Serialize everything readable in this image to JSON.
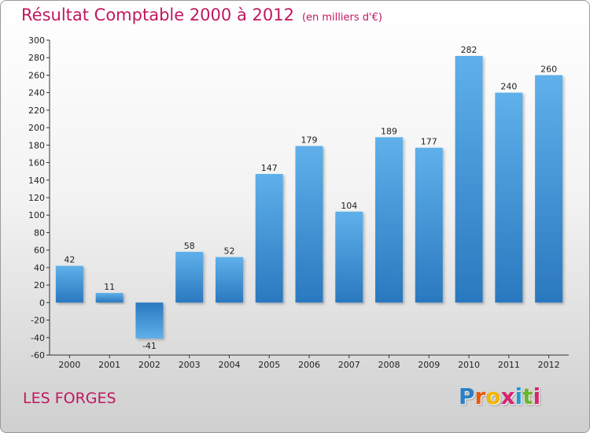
{
  "chart_data": {
    "type": "bar",
    "title": "Résultat Comptable 2000 à 2012",
    "subtitle": "(en milliers d'€)",
    "categories": [
      "2000",
      "2001",
      "2002",
      "2003",
      "2004",
      "2005",
      "2006",
      "2007",
      "2008",
      "2009",
      "2010",
      "2011",
      "2012"
    ],
    "values": [
      42,
      11,
      -41,
      58,
      52,
      147,
      179,
      104,
      189,
      177,
      282,
      240,
      260
    ],
    "ylim": [
      -60,
      300
    ],
    "ytick_step": 20,
    "xlabel": "",
    "ylabel": "",
    "grid": false,
    "bar_color": "#3a8fd4"
  },
  "footer": {
    "place": "LES FORGES",
    "logo_letters": [
      "P",
      "r",
      "o",
      "x",
      "i",
      "t",
      "i"
    ],
    "logo_colors": [
      "#2a7fc4",
      "#e8590c",
      "#f2b600",
      "#d6246e",
      "#1f9ad6",
      "#6bb42f",
      "#d6246e"
    ]
  }
}
